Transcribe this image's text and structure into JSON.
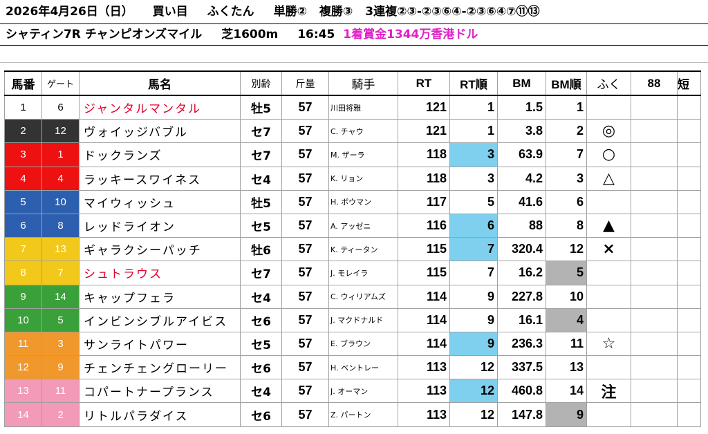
{
  "header": {
    "date": "2026年4月26日（日）",
    "buy_label": "買い目",
    "author": "ふくたん",
    "win": "単勝②",
    "place": "複勝③",
    "trio": "3連複②③‐②③⑥④‐②③⑥④⑦⑪⑬"
  },
  "race_info": {
    "race": "シャティン7R チャンピオンズマイル",
    "course": "芝1600m",
    "time": "16:45",
    "prize": "1着賞金1344万香港ドル"
  },
  "columns": {
    "num": "馬番",
    "gate": "ゲート",
    "name": "馬名",
    "sexage": "別齢",
    "weight": "斤量",
    "jockey": "騎手",
    "rt": "RT",
    "rt_rank": "RT順",
    "bm": "BM",
    "bm_rank": "BM順",
    "mark": "ふく",
    "col88": "88",
    "short": "短"
  },
  "colors": {
    "frame_1": "#ffffff",
    "frame_2": "#333333",
    "frame_3": "#ee1111",
    "frame_4": "#2c5fb0",
    "frame_5": "#f2c81a",
    "frame_6": "#3aa03a",
    "frame_7": "#f0982c",
    "frame_8": "#f29ab8",
    "highlight_blue": "#7fd0ee",
    "highlight_gray": "#b3b3b3",
    "red_name": "#e0002a",
    "prize_pink": "#e020c8"
  },
  "horses": [
    {
      "num": "1",
      "gate": "6",
      "name": "ジャンタルマンタル",
      "sexage": "牡5",
      "weight": "57",
      "jockey": "川田将雅",
      "rt": "121",
      "rt_rank": "1",
      "bm": "1.5",
      "bm_rank": "1",
      "mark": ""
    },
    {
      "num": "2",
      "gate": "12",
      "name": "ヴォイッジバブル",
      "sexage": "セ7",
      "weight": "57",
      "jockey": "C. チャウ",
      "rt": "121",
      "rt_rank": "1",
      "bm": "3.8",
      "bm_rank": "2",
      "mark": "◎"
    },
    {
      "num": "3",
      "gate": "1",
      "name": "ドックランズ",
      "sexage": "セ7",
      "weight": "57",
      "jockey": "M. ザーラ",
      "rt": "118",
      "rt_rank": "3",
      "bm": "63.9",
      "bm_rank": "7",
      "mark": "○"
    },
    {
      "num": "4",
      "gate": "4",
      "name": "ラッキースワイネス",
      "sexage": "セ4",
      "weight": "57",
      "jockey": "K. リョン",
      "rt": "118",
      "rt_rank": "3",
      "bm": "4.2",
      "bm_rank": "3",
      "mark": "△"
    },
    {
      "num": "5",
      "gate": "10",
      "name": "マイウィッシュ",
      "sexage": "牡5",
      "weight": "57",
      "jockey": "H. ボウマン",
      "rt": "117",
      "rt_rank": "5",
      "bm": "41.6",
      "bm_rank": "6",
      "mark": ""
    },
    {
      "num": "6",
      "gate": "8",
      "name": "レッドライオン",
      "sexage": "セ5",
      "weight": "57",
      "jockey": "A. アッゼニ",
      "rt": "116",
      "rt_rank": "6",
      "bm": "88",
      "bm_rank": "8",
      "mark": "▲"
    },
    {
      "num": "7",
      "gate": "13",
      "name": "ギャラクシーパッチ",
      "sexage": "牡6",
      "weight": "57",
      "jockey": "K. ティータン",
      "rt": "115",
      "rt_rank": "7",
      "bm": "320.4",
      "bm_rank": "12",
      "mark": "×"
    },
    {
      "num": "8",
      "gate": "7",
      "name": "シュトラウス",
      "sexage": "セ7",
      "weight": "57",
      "jockey": "J. モレイラ",
      "rt": "115",
      "rt_rank": "7",
      "bm": "16.2",
      "bm_rank": "5",
      "mark": ""
    },
    {
      "num": "9",
      "gate": "14",
      "name": "キャップフェラ",
      "sexage": "セ4",
      "weight": "57",
      "jockey": "C. ウィリアムズ",
      "rt": "114",
      "rt_rank": "9",
      "bm": "227.8",
      "bm_rank": "10",
      "mark": ""
    },
    {
      "num": "10",
      "gate": "5",
      "name": "インビンシブルアイビス",
      "sexage": "セ6",
      "weight": "57",
      "jockey": "J. マクドナルド",
      "rt": "114",
      "rt_rank": "9",
      "bm": "16.1",
      "bm_rank": "4",
      "mark": ""
    },
    {
      "num": "11",
      "gate": "3",
      "name": "サンライトパワー",
      "sexage": "セ5",
      "weight": "57",
      "jockey": "E. ブラウン",
      "rt": "114",
      "rt_rank": "9",
      "bm": "236.3",
      "bm_rank": "11",
      "mark": "☆"
    },
    {
      "num": "12",
      "gate": "9",
      "name": "チェンチェングローリー",
      "sexage": "セ6",
      "weight": "57",
      "jockey": "H. ベントレー",
      "rt": "113",
      "rt_rank": "12",
      "bm": "337.5",
      "bm_rank": "13",
      "mark": ""
    },
    {
      "num": "13",
      "gate": "11",
      "name": "コパートナープランス",
      "sexage": "セ4",
      "weight": "57",
      "jockey": "J. オーマン",
      "rt": "113",
      "rt_rank": "12",
      "bm": "460.8",
      "bm_rank": "14",
      "mark": "注"
    },
    {
      "num": "14",
      "gate": "2",
      "name": "リトルパラダイス",
      "sexage": "セ6",
      "weight": "57",
      "jockey": "Z. パートン",
      "rt": "113",
      "rt_rank": "12",
      "bm": "147.8",
      "bm_rank": "9",
      "mark": ""
    }
  ]
}
